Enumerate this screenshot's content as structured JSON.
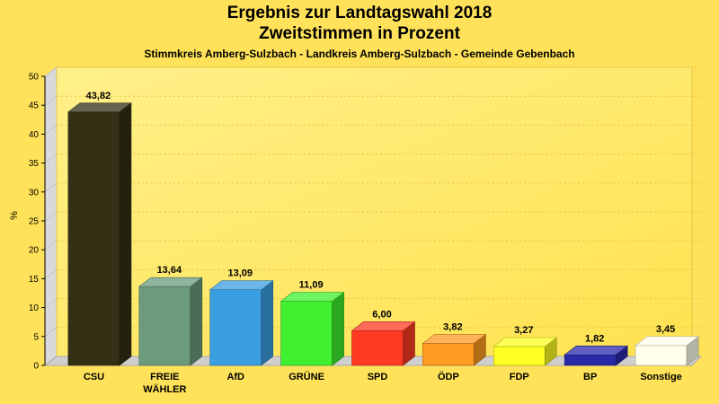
{
  "header": {
    "title_line1": "Ergebnis zur Landtagswahl 2018",
    "title_line2": "Zweitstimmen in Prozent",
    "subtitle": "Stimmkreis Amberg-Sulzbach - Landkreis Amberg-Sulzbach - Gemeinde Gebenbach"
  },
  "chart_data": {
    "type": "bar",
    "title": "Ergebnis zur Landtagswahl 2018",
    "subtitle": "Zweitstimmen in Prozent",
    "ylabel": "%",
    "xlabel": "",
    "ylim": [
      0,
      50
    ],
    "yticks": [
      0,
      5,
      10,
      15,
      20,
      25,
      30,
      35,
      40,
      45,
      50
    ],
    "grid": true,
    "categories": [
      "CSU",
      "FREIE WÄHLER",
      "AfD",
      "GRÜNE",
      "SPD",
      "ÖDP",
      "FDP",
      "BP",
      "Sonstige"
    ],
    "category_lines": [
      [
        "CSU"
      ],
      [
        "FREIE",
        "WÄHLER"
      ],
      [
        "AfD"
      ],
      [
        "GRÜNE"
      ],
      [
        "SPD"
      ],
      [
        "ÖDP"
      ],
      [
        "FDP"
      ],
      [
        "BP"
      ],
      [
        "Sonstige"
      ]
    ],
    "values": [
      43.82,
      13.64,
      13.09,
      11.09,
      6.0,
      3.82,
      3.27,
      1.82,
      3.45
    ],
    "value_labels": [
      "43,82",
      "13,64",
      "13,09",
      "11,09",
      "6,00",
      "3,82",
      "3,27",
      "1,82",
      "3,45"
    ],
    "colors": [
      "#333015",
      "#6b9a7c",
      "#3a9ee0",
      "#3ef02d",
      "#ff3a22",
      "#ff9b21",
      "#ffff22",
      "#2a2aa9",
      "#ffffec"
    ]
  }
}
